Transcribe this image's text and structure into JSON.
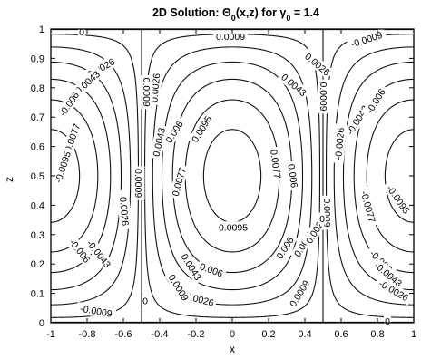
{
  "chart_data": {
    "type": "contour",
    "title_parts": [
      "2D Solution:  Θ",
      "0",
      "(x,z) for γ",
      "0",
      " = 1.4"
    ],
    "xlabel": "x",
    "ylabel": "z",
    "xlim": [
      -1,
      1
    ],
    "ylim": [
      0,
      1
    ],
    "xticks": [
      "-1",
      "-0.8",
      "-0.6",
      "-0.4",
      "-0.2",
      "0",
      "0.2",
      "0.4",
      "0.6",
      "0.8",
      "1"
    ],
    "yticks": [
      "0",
      "0.1",
      "0.2",
      "0.3",
      "0.4",
      "0.5",
      "0.6",
      "0.7",
      "0.8",
      "0.9",
      "1"
    ],
    "cell_boundaries_x": [
      -0.5,
      0.5
    ],
    "contour_levels": [
      -0.0095,
      -0.0077,
      -0.006,
      -0.0043,
      -0.0026,
      -0.0009,
      0,
      0.0009,
      0.0026,
      0.0043,
      0.006,
      0.0077,
      0.0095
    ],
    "labels": [
      {
        "text": "0",
        "x": -0.83,
        "z": 0.99,
        "rot": 0
      },
      {
        "text": "0.0009",
        "x": -0.01,
        "z": 0.975,
        "rot": 0
      },
      {
        "text": "-0.0009",
        "x": 0.74,
        "z": 0.965,
        "rot": -18
      },
      {
        "text": "-0.0026",
        "x": -0.73,
        "z": 0.865,
        "rot": -30
      },
      {
        "text": "-0.0043",
        "x": -0.805,
        "z": 0.815,
        "rot": -42
      },
      {
        "text": "-0.006",
        "x": -0.9,
        "z": 0.745,
        "rot": -55
      },
      {
        "text": "-0.0077",
        "x": -0.885,
        "z": 0.625,
        "rot": -70
      },
      {
        "text": "-0.0095",
        "x": -0.935,
        "z": 0.53,
        "rot": -72
      },
      {
        "text": "0.0026",
        "x": 0.47,
        "z": 0.88,
        "rot": 40
      },
      {
        "text": "0.0043",
        "x": 0.34,
        "z": 0.81,
        "rot": 40
      },
      {
        "text": "0.006",
        "x": -0.32,
        "z": 0.65,
        "rot": -58
      },
      {
        "text": "0.0095",
        "x": -0.17,
        "z": 0.66,
        "rot": -58
      },
      {
        "text": "0.0077",
        "x": -0.295,
        "z": 0.48,
        "rot": -75
      },
      {
        "text": "0.0043",
        "x": -0.405,
        "z": 0.615,
        "rot": -78
      },
      {
        "text": "0.0026",
        "x": -0.425,
        "z": 0.8,
        "rot": -85
      },
      {
        "text": "0.0009",
        "x": -0.47,
        "z": 0.785,
        "rot": 90
      },
      {
        "text": "0.0009",
        "x": -0.515,
        "z": 0.475,
        "rot": 90
      },
      {
        "text": "0.0077",
        "x": 0.24,
        "z": 0.54,
        "rot": 82
      },
      {
        "text": "0.006",
        "x": 0.335,
        "z": 0.5,
        "rot": 82
      },
      {
        "text": "0.0095",
        "x": 0.005,
        "z": 0.325,
        "rot": 0
      },
      {
        "text": "0.006",
        "x": 0.29,
        "z": 0.255,
        "rot": -58
      },
      {
        "text": "0.0043",
        "x": 0.395,
        "z": 0.27,
        "rot": -58
      },
      {
        "text": "0.0026",
        "x": 0.46,
        "z": 0.315,
        "rot": -58
      },
      {
        "text": "0.0009",
        "x": 0.505,
        "z": 0.77,
        "rot": 90
      },
      {
        "text": "0.0009",
        "x": 0.525,
        "z": 0.375,
        "rot": 90
      },
      {
        "text": "0",
        "x": 0.495,
        "z": 0.355,
        "rot": 0
      },
      {
        "text": "0.0043",
        "x": -0.225,
        "z": 0.19,
        "rot": 58
      },
      {
        "text": "0.006",
        "x": -0.115,
        "z": 0.18,
        "rot": 20
      },
      {
        "text": "0.0026",
        "x": -0.18,
        "z": 0.08,
        "rot": 15
      },
      {
        "text": "0.0009",
        "x": -0.295,
        "z": 0.12,
        "rot": 58
      },
      {
        "text": "0.0009",
        "x": 0.37,
        "z": 0.1,
        "rot": -58
      },
      {
        "text": "0",
        "x": -0.48,
        "z": 0.075,
        "rot": 0
      },
      {
        "text": "-0.0009",
        "x": -0.75,
        "z": 0.04,
        "rot": 10
      },
      {
        "text": "-0.006",
        "x": -0.84,
        "z": 0.245,
        "rot": 52
      },
      {
        "text": "-0.0043",
        "x": -0.735,
        "z": 0.235,
        "rot": 52
      },
      {
        "text": "-0.0026",
        "x": -0.595,
        "z": 0.385,
        "rot": 85
      },
      {
        "text": "-0.0026",
        "x": 0.59,
        "z": 0.61,
        "rot": -85
      },
      {
        "text": "-0.0043",
        "x": 0.69,
        "z": 0.69,
        "rot": -58
      },
      {
        "text": "-0.006",
        "x": 0.79,
        "z": 0.755,
        "rot": -58
      },
      {
        "text": "-0.0077",
        "x": 0.75,
        "z": 0.395,
        "rot": 75
      },
      {
        "text": "-0.0095",
        "x": 0.915,
        "z": 0.42,
        "rot": 55
      },
      {
        "text": "-0.006",
        "x": 0.82,
        "z": 0.21,
        "rot": 45
      },
      {
        "text": "-0.0043",
        "x": 0.86,
        "z": 0.165,
        "rot": 40
      },
      {
        "text": "-0.0026",
        "x": 0.89,
        "z": 0.11,
        "rot": 30
      },
      {
        "text": "0",
        "x": 0.855,
        "z": 0.005,
        "rot": 0
      }
    ]
  }
}
